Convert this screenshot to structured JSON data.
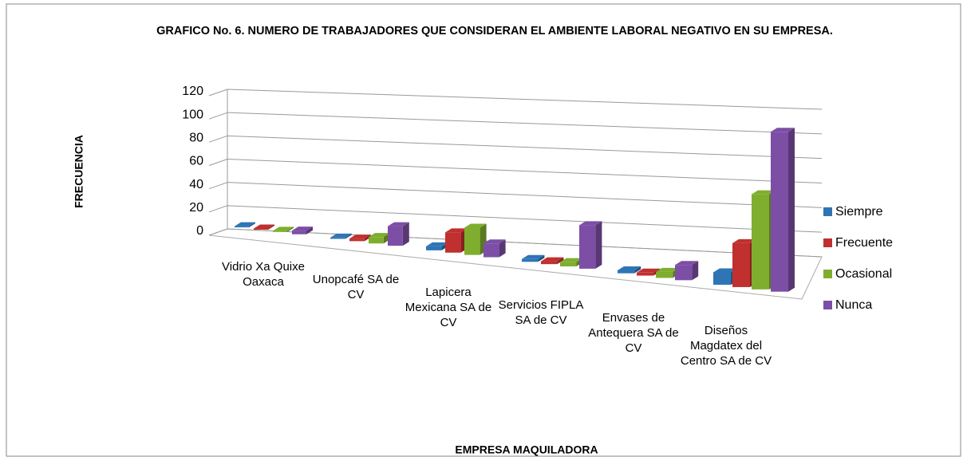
{
  "chart_data": {
    "type": "bar3d",
    "title": "GRAFICO No. 6.  NUMERO DE TRABAJADORES QUE CONSIDERAN EL AMBIENTE LABORAL NEGATIVO EN SU EMPRESA.",
    "xlabel": "EMPRESA MAQUILADORA",
    "ylabel": "FRECUENCIA",
    "categories": [
      "Vidrio Xa Quixe Oaxaca",
      "Unopcafé SA de CV",
      "Lapicera Mexicana SA de CV",
      "Servicios FIPLA SA de CV",
      "Envases de Antequera SA de CV",
      "Diseños Magdatex del Centro SA de CV"
    ],
    "series": [
      {
        "name": "Siempre",
        "color": "#2e75b6",
        "values": [
          1,
          1,
          3,
          2,
          2,
          8
        ]
      },
      {
        "name": "Frecuente",
        "color": "#c0302e",
        "values": [
          1,
          2,
          15,
          2,
          2,
          28
        ]
      },
      {
        "name": "Ocasional",
        "color": "#7fae2e",
        "values": [
          1,
          5,
          20,
          3,
          4,
          60
        ]
      },
      {
        "name": "Nunca",
        "color": "#7d4ea6",
        "values": [
          3,
          15,
          10,
          30,
          10,
          100
        ]
      }
    ],
    "ylim": [
      0,
      120
    ],
    "yticks": [
      0,
      20,
      40,
      60,
      80,
      100,
      120
    ],
    "grid": true,
    "legend": "right"
  }
}
